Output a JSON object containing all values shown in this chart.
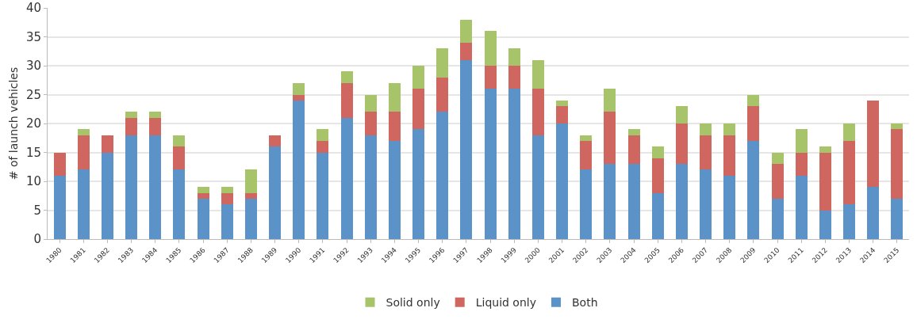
{
  "chart_data": {
    "type": "bar",
    "stacked": true,
    "ylabel": "# of launch vehicles",
    "categories": [
      "1980",
      "1981",
      "1982",
      "1983",
      "1984",
      "1985",
      "1986",
      "1987",
      "1988",
      "1989",
      "1990",
      "1991",
      "1992",
      "1993",
      "1994",
      "1995",
      "1996",
      "1997",
      "1998",
      "1999",
      "2000",
      "2001",
      "2002",
      "2003",
      "2004",
      "2005",
      "2006",
      "2007",
      "2008",
      "2009",
      "2010",
      "2011",
      "2012",
      "2013",
      "2014",
      "2015"
    ],
    "series": [
      {
        "name": "Both",
        "color": "#5b93c9",
        "values": [
          11,
          12,
          15,
          18,
          18,
          12,
          7,
          6,
          7,
          16,
          24,
          15,
          21,
          18,
          17,
          19,
          22,
          31,
          26,
          26,
          18,
          20,
          12,
          13,
          13,
          8,
          13,
          12,
          11,
          17,
          7,
          11,
          5,
          6,
          9,
          7
        ]
      },
      {
        "name": "Liquid only",
        "color": "#cf6660",
        "values": [
          4,
          6,
          3,
          3,
          3,
          4,
          1,
          2,
          1,
          2,
          1,
          2,
          6,
          4,
          5,
          7,
          6,
          3,
          4,
          4,
          8,
          3,
          5,
          9,
          5,
          6,
          7,
          6,
          7,
          6,
          6,
          4,
          10,
          11,
          15,
          12
        ]
      },
      {
        "name": "Solid only",
        "color": "#a7c46a",
        "values": [
          0,
          1,
          0,
          1,
          1,
          2,
          1,
          1,
          4,
          0,
          2,
          2,
          2,
          3,
          5,
          4,
          5,
          4,
          6,
          3,
          5,
          1,
          1,
          4,
          1,
          2,
          3,
          2,
          2,
          2,
          2,
          4,
          1,
          3,
          0,
          1
        ]
      }
    ],
    "ylim": [
      0,
      40
    ],
    "yticks": [
      0,
      5,
      10,
      15,
      20,
      25,
      30,
      35,
      40
    ],
    "grid": "y",
    "legend": "bottom"
  }
}
